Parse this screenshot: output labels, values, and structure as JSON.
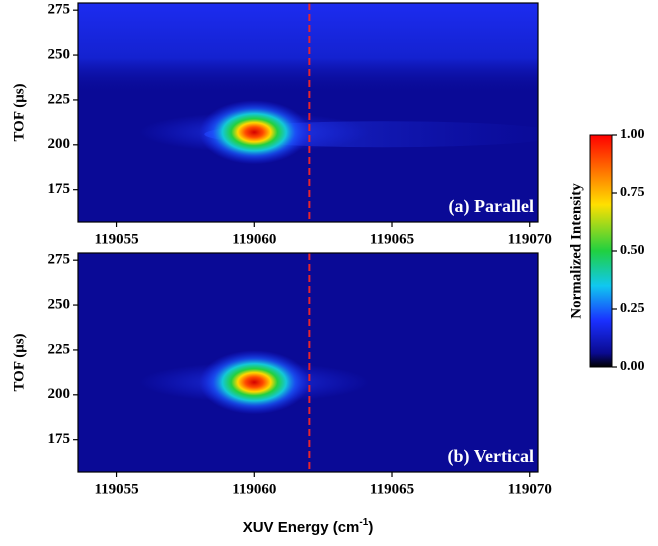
{
  "chart_data": [
    {
      "type": "heatmap",
      "panel_label": "(a) Parallel",
      "y_label": "TOF (μs)",
      "xlim": [
        119053.6,
        119070.3
      ],
      "xticks": [
        119055,
        119060,
        119065,
        119070
      ],
      "ylim": [
        157,
        279
      ],
      "yticks": [
        175,
        200,
        225,
        250,
        275
      ],
      "peak": {
        "x": 119060,
        "y": 207,
        "value": 1
      },
      "band_ylim": [
        228,
        279
      ],
      "tail": true,
      "marker_x": 119062,
      "marker_color": "#e8242c"
    },
    {
      "type": "heatmap",
      "panel_label": "(b) Vertical",
      "y_label": "TOF (μs)",
      "xlim": [
        119053.6,
        119070.3
      ],
      "xticks": [
        119055,
        119060,
        119065,
        119070
      ],
      "ylim": [
        157,
        279
      ],
      "yticks": [
        175,
        200,
        225,
        250,
        275
      ],
      "peak": {
        "x": 119060,
        "y": 207,
        "value": 1
      },
      "tail": false,
      "marker_x": 119062,
      "marker_color": "#e8242c"
    }
  ],
  "x_label": "XUV Energy (cm",
  "x_label_sup": "-1",
  "x_label_end": ")",
  "colorbar": {
    "label": "Normalized Intensity",
    "lim": [
      0,
      1
    ],
    "ticks": [
      {
        "value": 0,
        "label": "0.00"
      },
      {
        "value": 0.25,
        "label": "0.25"
      },
      {
        "value": 0.5,
        "label": "0.50"
      },
      {
        "value": 0.75,
        "label": "0.75"
      },
      {
        "value": 1,
        "label": "1.00"
      }
    ]
  }
}
